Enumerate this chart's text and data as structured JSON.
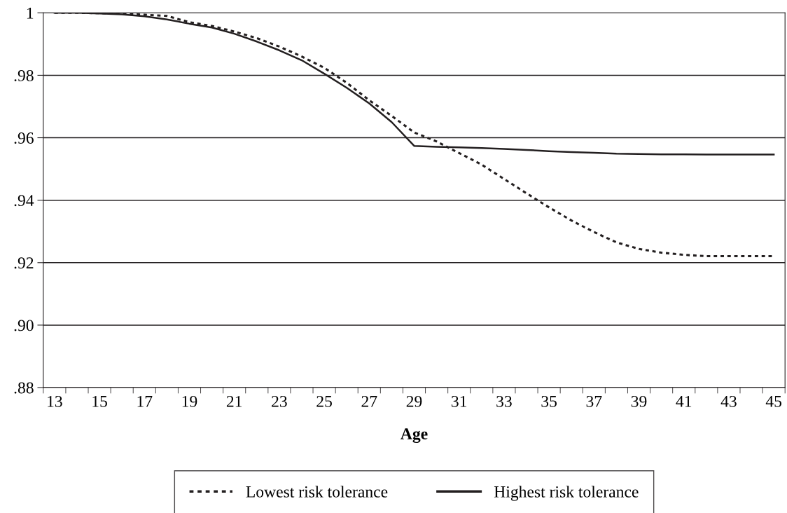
{
  "chart_data": {
    "type": "line",
    "xlabel": "Age",
    "categories": [
      "13",
      null,
      "15",
      null,
      "17",
      null,
      "19",
      null,
      "21",
      null,
      "23",
      null,
      "25",
      null,
      "27",
      null,
      "29",
      null,
      "31",
      null,
      "33",
      null,
      "35",
      null,
      "37",
      null,
      "39",
      null,
      "41",
      null,
      "43",
      null,
      "45"
    ],
    "series": [
      {
        "name": "Lowest risk tolerance",
        "color": "#231f20",
        "line_style": "dotted",
        "values": [
          1.0,
          1.0,
          0.9999,
          0.9997,
          0.9994,
          0.999,
          0.997,
          0.9958,
          0.994,
          0.9919,
          0.9892,
          0.986,
          0.9824,
          0.9776,
          0.972,
          0.967,
          0.9617,
          0.9588,
          0.9551,
          0.9514,
          0.9468,
          0.9422,
          0.9377,
          0.9335,
          0.9298,
          0.9265,
          0.9244,
          0.9232,
          0.9225,
          0.9221,
          0.9221,
          0.9221,
          0.9221
        ]
      },
      {
        "name": "Highest risk tolerance",
        "color": "#231f20",
        "line_style": "solid",
        "values": [
          1.0,
          1.0,
          0.9998,
          0.9995,
          0.9989,
          0.9979,
          0.9965,
          0.9953,
          0.9933,
          0.9908,
          0.988,
          0.9848,
          0.9805,
          0.976,
          0.971,
          0.965,
          0.9574,
          0.9571,
          0.9569,
          0.9567,
          0.9564,
          0.9561,
          0.9557,
          0.9554,
          0.9552,
          0.9549,
          0.9548,
          0.9547,
          0.9547,
          0.9546,
          0.9546,
          0.9546,
          0.9546
        ]
      }
    ],
    "ylim": [
      0.88,
      1
    ],
    "yticks": [
      {
        "value": 0.88,
        "label": ".88"
      },
      {
        "value": 0.9,
        "label": ".90"
      },
      {
        "value": 0.92,
        "label": ".92"
      },
      {
        "value": 0.94,
        "label": ".94"
      },
      {
        "value": 0.96,
        "label": ".96"
      },
      {
        "value": 0.98,
        "label": ".98"
      },
      1
    ],
    "grid": "y",
    "legend": "bottom",
    "marker": "none"
  }
}
